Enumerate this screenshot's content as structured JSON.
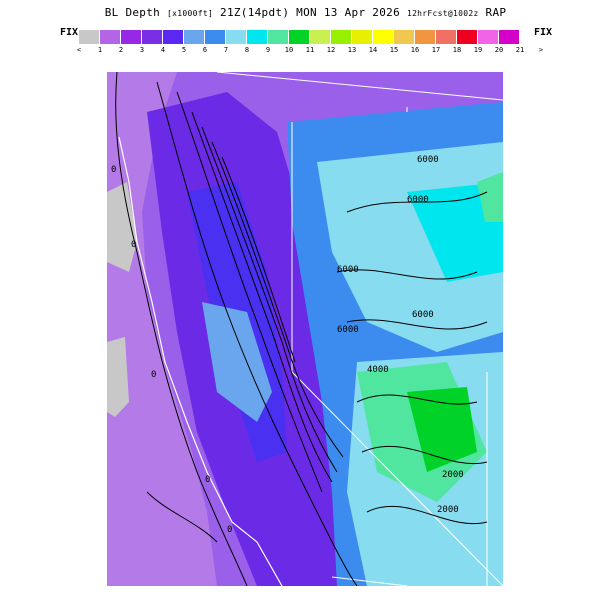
{
  "title": {
    "field": "BL Depth",
    "units": "[x1000ft]",
    "valid": "21Z(14pdt) MON 13 Apr 2026",
    "forecast": "12hrFcst@1002z",
    "model": "RAP"
  },
  "legend": {
    "fix_left": "FIX",
    "fix_right": "FIX",
    "ticks": [
      "<",
      "1",
      "2",
      "3",
      "4",
      "5",
      "6",
      "7",
      "8",
      "9",
      "10",
      "11",
      "12",
      "13",
      "14",
      "15",
      "16",
      "17",
      "18",
      "19",
      "20",
      "21",
      ">"
    ],
    "colors": [
      "#c8c8c8",
      "#b464e6",
      "#9628e6",
      "#7a2ee6",
      "#5a28f0",
      "#6aa6ee",
      "#3c8cf0",
      "#88dcf0",
      "#00e6ee",
      "#50e6a0",
      "#00d228",
      "#c8f050",
      "#96f000",
      "#e6f000",
      "#ffff00",
      "#f0c850",
      "#f09640",
      "#f07064",
      "#f00020",
      "#f064e6",
      "#d200c8"
    ]
  },
  "contour_labels": [
    "0",
    "0",
    "0",
    "0",
    "0",
    "6000",
    "6000",
    "6000",
    "6000",
    "6000",
    "4000",
    "2000",
    "2000"
  ]
}
